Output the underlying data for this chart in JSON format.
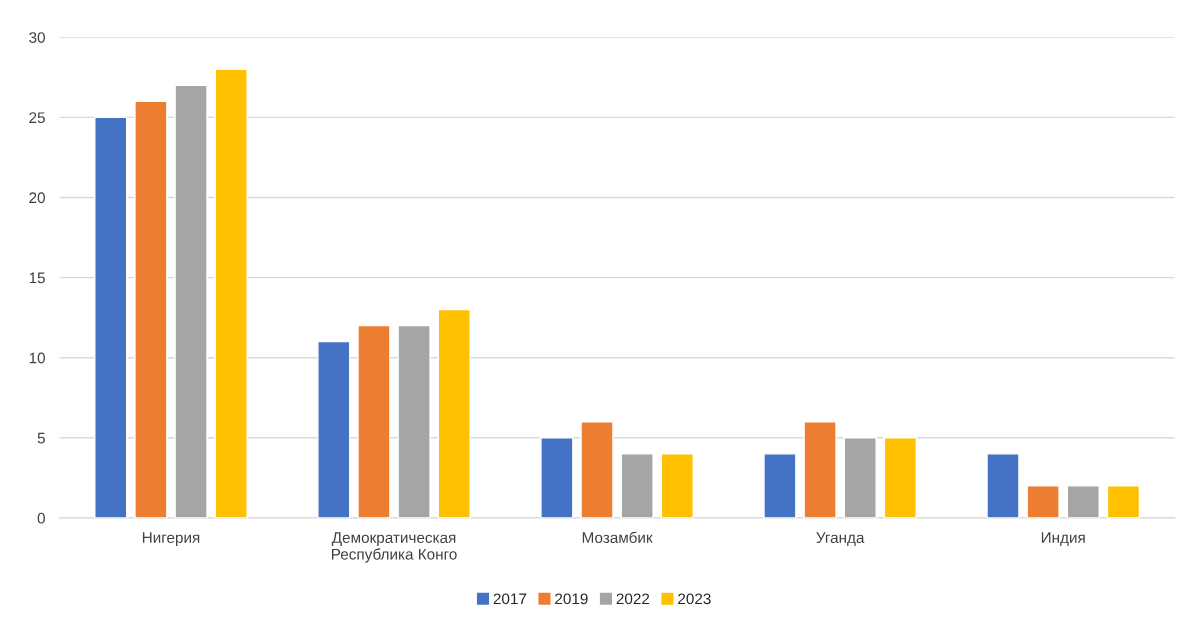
{
  "chart_data": {
    "type": "bar",
    "categories": [
      "Нигерия",
      "Демократическая\nРеспублика Конго",
      "Мозамбик",
      "Уганда",
      "Индия"
    ],
    "series": [
      {
        "name": "2017",
        "color": "#4472c4",
        "values": [
          25,
          11,
          5,
          4,
          4
        ]
      },
      {
        "name": "2019",
        "color": "#ed7d31",
        "values": [
          26,
          12,
          6,
          6,
          2
        ]
      },
      {
        "name": "2022",
        "color": "#a5a5a5",
        "values": [
          27,
          12,
          4,
          5,
          2
        ]
      },
      {
        "name": "2023",
        "color": "#ffc000",
        "values": [
          28,
          13,
          4,
          5,
          2
        ]
      }
    ],
    "ylim": [
      0,
      30
    ],
    "yticks": [
      0,
      5,
      10,
      15,
      20,
      25,
      30
    ],
    "grid": "y",
    "legend": "bottom"
  }
}
